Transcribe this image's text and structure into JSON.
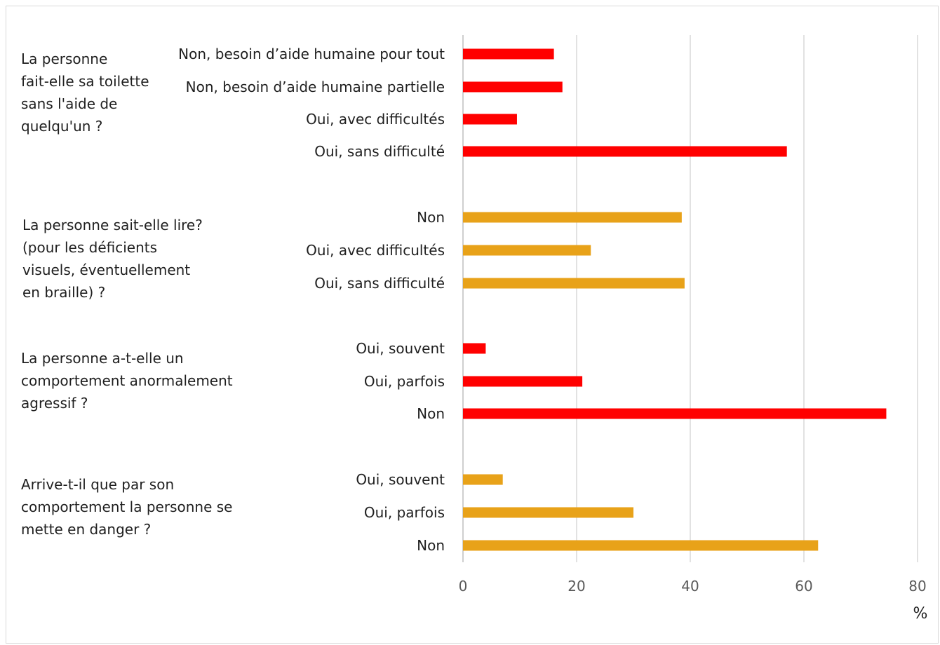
{
  "chart_data": {
    "type": "bar",
    "orientation": "horizontal",
    "x_unit_label": "%",
    "xlim": [
      0,
      80
    ],
    "xticks": [
      0,
      20,
      40,
      60,
      80
    ],
    "grid": true,
    "groups": [
      {
        "question": "La personne\nfait-elle sa toilette\nsans l'aide de\nquelqu'un ?",
        "color": "#ff0000",
        "categories": [
          "Non, besoin d’aide humaine pour tout",
          "Non, besoin d’aide humaine partielle",
          "Oui, avec difficultés",
          "Oui, sans difficulté"
        ],
        "values": [
          16,
          17.5,
          9.5,
          57
        ]
      },
      {
        "question": "La personne sait-elle lire?\n(pour les déficients\nvisuels, éventuellement\nen braille) ?",
        "color": "#e8a219",
        "categories": [
          "Non",
          "Oui, avec difficultés",
          "Oui, sans difficulté"
        ],
        "values": [
          38.5,
          22.5,
          39
        ]
      },
      {
        "question": "La personne a-t-elle un\ncomportement anormalement\nagressif ?",
        "color": "#ff0000",
        "categories": [
          "Oui, souvent",
          "Oui, parfois",
          "Non"
        ],
        "values": [
          4,
          21,
          74.5
        ]
      },
      {
        "question": "Arrive-t-il que par son\ncomportement la personne se\nmette en danger ?",
        "color": "#e8a219",
        "categories": [
          "Oui, souvent",
          "Oui, parfois",
          "Non"
        ],
        "values": [
          7,
          30,
          62.5
        ]
      }
    ]
  }
}
